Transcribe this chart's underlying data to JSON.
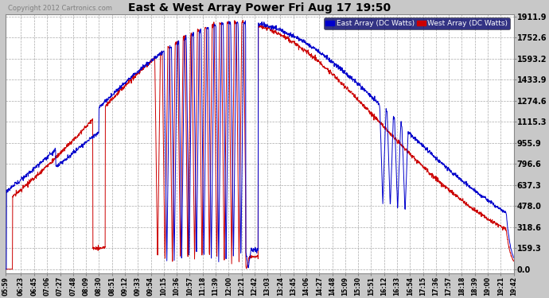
{
  "title": "East & West Array Power Fri Aug 17 19:50",
  "copyright": "Copyright 2012 Cartronics.com",
  "legend_east": "East Array (DC Watts)",
  "legend_west": "West Array (DC Watts)",
  "east_color": "#0000cc",
  "west_color": "#cc0000",
  "background_color": "#c8c8c8",
  "plot_bg_color": "#ffffff",
  "grid_color": "#aaaaaa",
  "yticks": [
    0.0,
    159.3,
    318.6,
    478.0,
    637.3,
    796.6,
    955.9,
    1115.3,
    1274.6,
    1433.9,
    1593.2,
    1752.6,
    1911.9
  ],
  "ymax": 1930,
  "ymin": -30,
  "xtick_labels": [
    "05:59",
    "06:23",
    "06:45",
    "07:06",
    "07:27",
    "07:48",
    "08:09",
    "08:30",
    "08:51",
    "09:12",
    "09:33",
    "09:54",
    "10:15",
    "10:36",
    "10:57",
    "11:18",
    "11:39",
    "12:00",
    "12:21",
    "12:42",
    "13:03",
    "13:24",
    "13:45",
    "14:06",
    "14:27",
    "14:48",
    "15:09",
    "15:30",
    "15:51",
    "16:12",
    "16:33",
    "16:54",
    "17:15",
    "17:36",
    "17:57",
    "18:18",
    "18:39",
    "19:00",
    "19:21",
    "19:42"
  ]
}
